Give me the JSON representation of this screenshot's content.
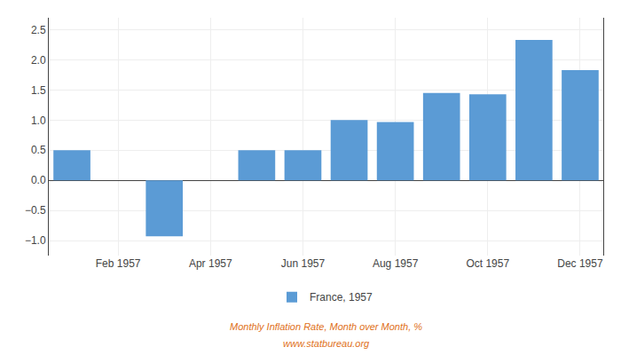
{
  "chart_data": {
    "type": "bar",
    "categories": [
      null,
      "Feb 1957",
      null,
      "Apr 1957",
      null,
      "Jun 1957",
      null,
      "Aug 1957",
      null,
      "Oct 1957",
      null,
      "Dec 1957"
    ],
    "series": [
      {
        "name": "France, 1957",
        "color": "#5B9BD5",
        "values": [
          0.5,
          null,
          -0.93,
          null,
          0.5,
          0.5,
          1.0,
          0.97,
          1.45,
          1.43,
          2.33,
          1.83
        ]
      }
    ],
    "ylim": [
      -1.25,
      2.7
    ],
    "yticks": [
      {
        "value": -1.0,
        "label": "−1.0"
      },
      {
        "value": -0.5,
        "label": "−0.5"
      },
      {
        "value": 0.0,
        "label": "0.0"
      },
      0.5,
      {
        "value": 1.0,
        "label": "1.0"
      },
      1.5,
      {
        "value": 2.0,
        "label": "2.0"
      },
      2.5
    ],
    "grid": true,
    "legend": "bottom",
    "annotations": [
      {
        "text": "Monthly Inflation Rate, Month over Month, %",
        "color": "#E07020"
      },
      {
        "text": "www.statbureau.org",
        "color": "#E07020"
      }
    ]
  }
}
